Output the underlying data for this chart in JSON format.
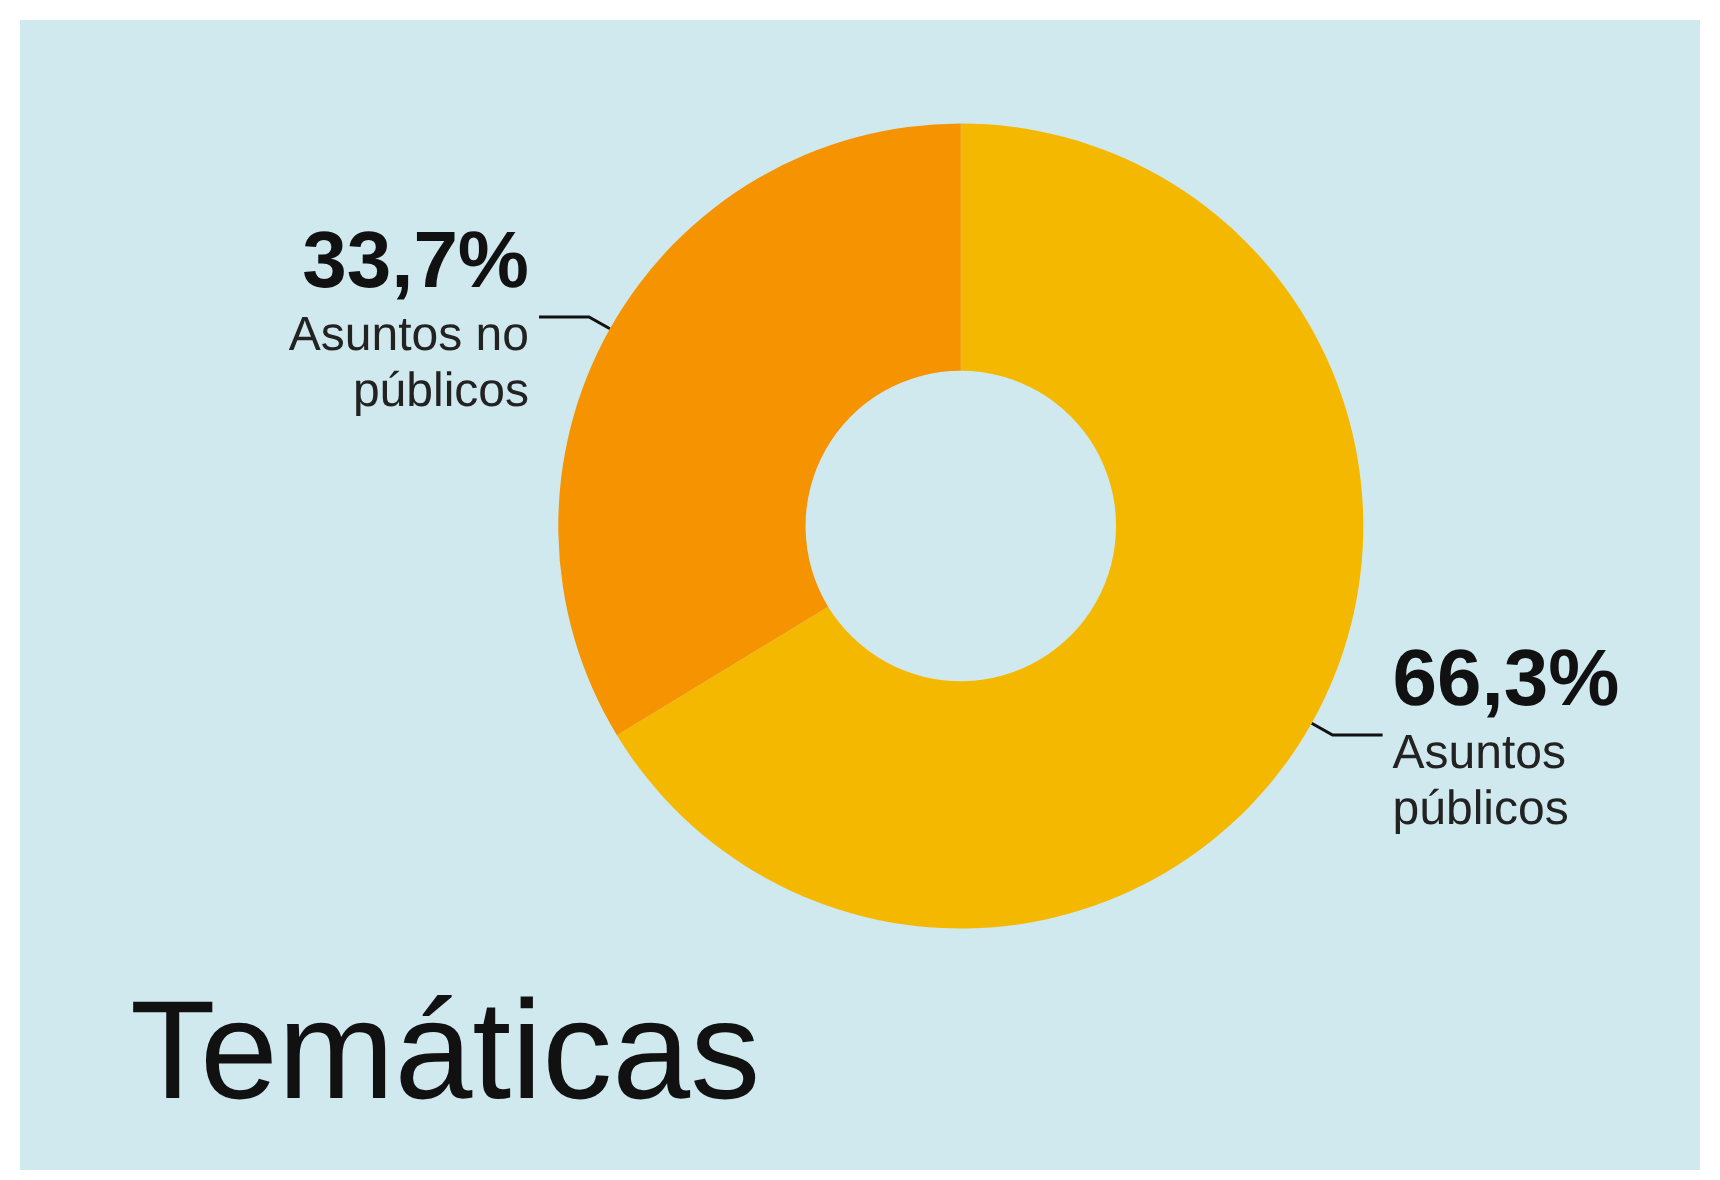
{
  "chart_data": {
    "type": "donut",
    "title": "Temáticas",
    "categories": [
      "Asuntos públicos",
      "Asuntos no públicos"
    ],
    "values": [
      66.3,
      33.7
    ],
    "colors": [
      "#f5b800",
      "#f59300"
    ],
    "value_labels": [
      "66,3%",
      "33,7%"
    ],
    "legend": false
  }
}
